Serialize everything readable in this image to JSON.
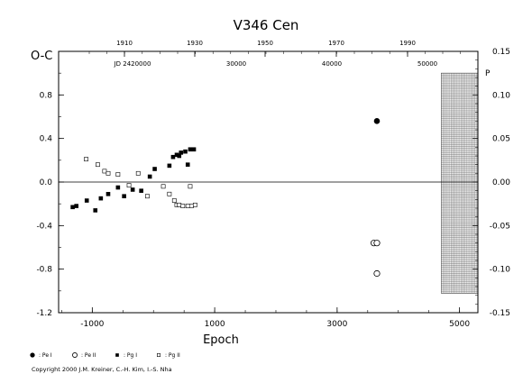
{
  "chart_data": {
    "type": "scatter",
    "title": "V346  Cen",
    "ylabel": "O-C",
    "xlabel": "Epoch",
    "xlim": [
      -1550,
      5300
    ],
    "ylim": [
      -1.2,
      1.2
    ],
    "x_ticks": [
      "-1000",
      "1000",
      "3000",
      "5000"
    ],
    "y_ticks_left": [
      "-1.2",
      "-0.8",
      "-0.4",
      "0.0",
      "0.4",
      "0.8"
    ],
    "y_ticks_right": [
      "-0.15",
      "-0.10",
      "-0.05",
      "0.00",
      "0.05",
      "0.10",
      "0.15"
    ],
    "y_right_unit": "P",
    "top_year_ticks": [
      "1910",
      "1930",
      "1950",
      "1970",
      "1990"
    ],
    "top_jd_ticks": [
      "JD 2420000",
      "30000",
      "40000",
      "50000"
    ],
    "series": [
      {
        "name": "Pe I",
        "marker": "filled-circle",
        "points": [
          [
            3650,
            0.56
          ]
        ]
      },
      {
        "name": "Pe II",
        "marker": "open-circle",
        "points": [
          [
            3600,
            -0.56
          ],
          [
            3650,
            -0.56
          ],
          [
            3650,
            -0.84
          ]
        ]
      },
      {
        "name": "Pg I",
        "marker": "filled-square",
        "points": [
          [
            -1320,
            -0.23
          ],
          [
            -1260,
            -0.22
          ],
          [
            -1090,
            -0.17
          ],
          [
            -950,
            -0.26
          ],
          [
            -860,
            -0.15
          ],
          [
            -740,
            -0.11
          ],
          [
            -580,
            -0.05
          ],
          [
            -480,
            -0.13
          ],
          [
            -340,
            -0.07
          ],
          [
            -200,
            -0.08
          ],
          [
            -60,
            0.05
          ],
          [
            20,
            0.12
          ],
          [
            260,
            0.15
          ],
          [
            320,
            0.23
          ],
          [
            380,
            0.25
          ],
          [
            420,
            0.24
          ],
          [
            450,
            0.27
          ],
          [
            520,
            0.28
          ],
          [
            560,
            0.16
          ],
          [
            600,
            0.3
          ],
          [
            660,
            0.3
          ]
        ]
      },
      {
        "name": "Pg II",
        "marker": "open-square",
        "points": [
          [
            -1100,
            0.21
          ],
          [
            -910,
            0.16
          ],
          [
            -800,
            0.1
          ],
          [
            -740,
            0.08
          ],
          [
            -580,
            0.07
          ],
          [
            -400,
            -0.03
          ],
          [
            -250,
            0.08
          ],
          [
            -100,
            -0.13
          ],
          [
            160,
            -0.04
          ],
          [
            260,
            -0.11
          ],
          [
            340,
            -0.17
          ],
          [
            380,
            -0.21
          ],
          [
            420,
            -0.21
          ],
          [
            480,
            -0.22
          ],
          [
            560,
            -0.22
          ],
          [
            600,
            -0.04
          ],
          [
            620,
            -0.22
          ],
          [
            680,
            -0.21
          ]
        ]
      }
    ]
  },
  "legend": [
    {
      "label": ": Pe I",
      "marker": "filled-circle"
    },
    {
      "label": ": Pe II",
      "marker": "open-circle"
    },
    {
      "label": ": Pg I",
      "marker": "filled-square"
    },
    {
      "label": ": Pg II",
      "marker": "open-square"
    }
  ],
  "copyright": "Copyright 2000 J.M. Kreiner, C.-H. Kim, I.-S. Nha"
}
